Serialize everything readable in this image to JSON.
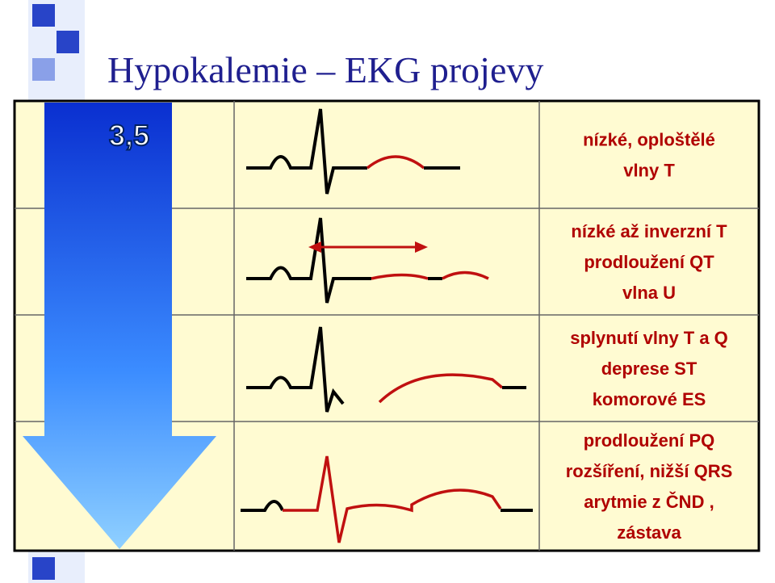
{
  "title": "Hypokalemie – EKG projevy",
  "level": "3,5",
  "rows": [
    {
      "lines": [
        "nízké, oploštělé",
        "vlny T"
      ]
    },
    {
      "lines": [
        "nízké až inverzní T",
        "prodloužení QT",
        "vlna U"
      ]
    },
    {
      "lines": [
        "splynutí vlny T a Q",
        "deprese ST",
        "komorové ES"
      ]
    },
    {
      "lines": [
        "prodloužení PQ",
        "rozšíření, nižší QRS",
        "arytmie z ČND ,",
        "zástava"
      ]
    }
  ]
}
